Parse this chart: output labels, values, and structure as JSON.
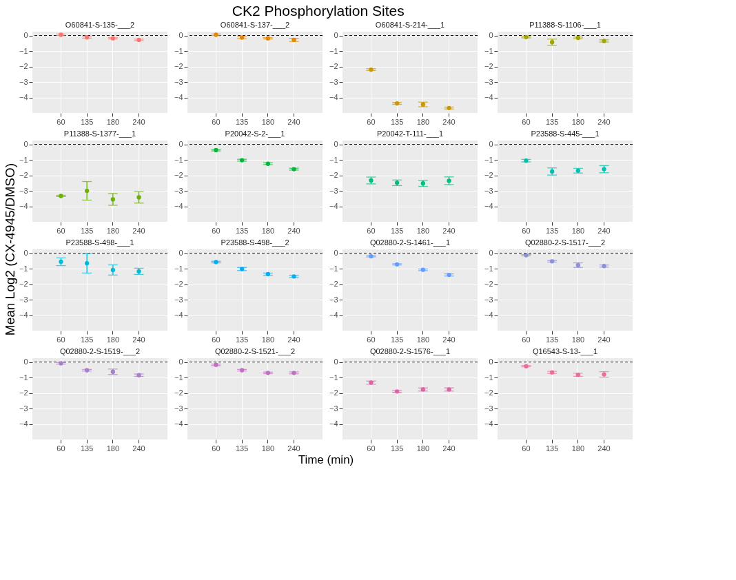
{
  "chart_data": [
    {
      "type": "scatter",
      "title": "O60841-S-135-___2",
      "annotations": [
        "CK2 Phosphorylation Sites"
      ],
      "ylabel": "Mean Log2 (CX-4945/DMSO)",
      "categories": [
        "60",
        "135",
        "180",
        "240"
      ],
      "ylim": [
        -5,
        0.25
      ],
      "yticks": [
        -4,
        -3,
        -2,
        -1,
        0
      ],
      "grid": true,
      "marker": "circle",
      "ref_lines": [
        {
          "axis": "y",
          "value": 0,
          "line_style": "dashed",
          "color": "#000000"
        }
      ],
      "series": [
        {
          "color": "#F8766D",
          "values": [
            0.05,
            -0.12,
            -0.18,
            -0.28
          ],
          "errors": [
            0.05,
            0.05,
            0.04,
            0.05
          ]
        }
      ]
    },
    {
      "type": "scatter",
      "title": "O60841-S-137-___2",
      "categories": [
        "60",
        "135",
        "180",
        "240"
      ],
      "ylim": [
        -5,
        0.25
      ],
      "yticks": [
        -4,
        -3,
        -2,
        -1,
        0
      ],
      "grid": true,
      "marker": "circle",
      "ref_lines": [
        {
          "axis": "y",
          "value": 0,
          "line_style": "dashed",
          "color": "#000000"
        }
      ],
      "series": [
        {
          "color": "#E58700",
          "values": [
            0.05,
            -0.13,
            -0.18,
            -0.28
          ],
          "errors": [
            0.05,
            0.07,
            0.04,
            0.1
          ]
        }
      ]
    },
    {
      "type": "scatter",
      "title": "O60841-S-214-___1",
      "categories": [
        "60",
        "135",
        "180",
        "240"
      ],
      "ylim": [
        -5,
        0.25
      ],
      "yticks": [
        -4,
        -3,
        -2,
        -1,
        0
      ],
      "grid": true,
      "marker": "circle",
      "ref_lines": [
        {
          "axis": "y",
          "value": 0,
          "line_style": "dashed",
          "color": "#000000"
        }
      ],
      "series": [
        {
          "color": "#C99800",
          "values": [
            -2.2,
            -4.38,
            -4.45,
            -4.68
          ],
          "errors": [
            0.06,
            0.06,
            0.15,
            0.06
          ]
        }
      ]
    },
    {
      "type": "scatter",
      "title": "P11388-S-1106-___1",
      "categories": [
        "60",
        "135",
        "180",
        "240"
      ],
      "ylim": [
        -5,
        0.25
      ],
      "yticks": [
        -4,
        -3,
        -2,
        -1,
        0
      ],
      "grid": true,
      "marker": "circle",
      "ref_lines": [
        {
          "axis": "y",
          "value": 0,
          "line_style": "dashed",
          "color": "#000000"
        }
      ],
      "series": [
        {
          "color": "#A3A500",
          "values": [
            -0.1,
            -0.43,
            -0.15,
            -0.35
          ],
          "errors": [
            0.05,
            0.2,
            0.05,
            0.07
          ]
        }
      ]
    },
    {
      "type": "scatter",
      "title": "P11388-S-1377-___1",
      "categories": [
        "60",
        "135",
        "180",
        "240"
      ],
      "ylim": [
        -5,
        0.25
      ],
      "yticks": [
        -4,
        -3,
        -2,
        -1,
        0
      ],
      "grid": true,
      "marker": "circle",
      "ref_lines": [
        {
          "axis": "y",
          "value": 0,
          "line_style": "dashed",
          "color": "#000000"
        }
      ],
      "series": [
        {
          "color": "#6BB100",
          "values": [
            -3.33,
            -3.0,
            -3.55,
            -3.42
          ],
          "errors": [
            0.04,
            0.6,
            0.38,
            0.37
          ]
        }
      ]
    },
    {
      "type": "scatter",
      "title": "P20042-S-2-___1",
      "categories": [
        "60",
        "135",
        "180",
        "240"
      ],
      "ylim": [
        -5,
        0.25
      ],
      "yticks": [
        -4,
        -3,
        -2,
        -1,
        0
      ],
      "grid": true,
      "marker": "circle",
      "ref_lines": [
        {
          "axis": "y",
          "value": 0,
          "line_style": "dashed",
          "color": "#000000"
        }
      ],
      "series": [
        {
          "color": "#00BA38",
          "values": [
            -0.37,
            -1.02,
            -1.25,
            -1.6
          ],
          "errors": [
            0.05,
            0.06,
            0.06,
            0.06
          ]
        }
      ]
    },
    {
      "type": "scatter",
      "title": "P20042-T-111-___1",
      "categories": [
        "60",
        "135",
        "180",
        "240"
      ],
      "ylim": [
        -5,
        0.25
      ],
      "yticks": [
        -4,
        -3,
        -2,
        -1,
        0
      ],
      "grid": true,
      "marker": "circle",
      "ref_lines": [
        {
          "axis": "y",
          "value": 0,
          "line_style": "dashed",
          "color": "#000000"
        }
      ],
      "series": [
        {
          "color": "#00BF7D",
          "values": [
            -2.33,
            -2.48,
            -2.52,
            -2.35
          ],
          "errors": [
            0.22,
            0.18,
            0.19,
            0.25
          ]
        }
      ]
    },
    {
      "type": "scatter",
      "title": "P23588-S-445-___1",
      "categories": [
        "60",
        "135",
        "180",
        "240"
      ],
      "ylim": [
        -5,
        0.25
      ],
      "yticks": [
        -4,
        -3,
        -2,
        -1,
        0
      ],
      "grid": true,
      "marker": "circle",
      "ref_lines": [
        {
          "axis": "y",
          "value": 0,
          "line_style": "dashed",
          "color": "#000000"
        }
      ],
      "series": [
        {
          "color": "#00C0AF",
          "values": [
            -1.05,
            -1.75,
            -1.7,
            -1.6
          ],
          "errors": [
            0.08,
            0.23,
            0.15,
            0.23
          ]
        }
      ]
    },
    {
      "type": "scatter",
      "title": "P23588-S-498-___1",
      "categories": [
        "60",
        "135",
        "180",
        "240"
      ],
      "ylim": [
        -5,
        0.25
      ],
      "yticks": [
        -4,
        -3,
        -2,
        -1,
        0
      ],
      "grid": true,
      "marker": "circle",
      "ref_lines": [
        {
          "axis": "y",
          "value": 0,
          "line_style": "dashed",
          "color": "#000000"
        }
      ],
      "series": [
        {
          "color": "#00BCD8",
          "values": [
            -0.55,
            -0.65,
            -1.08,
            -1.17
          ],
          "errors": [
            0.25,
            0.63,
            0.33,
            0.2
          ]
        }
      ]
    },
    {
      "type": "scatter",
      "title": "P23588-S-498-___2",
      "categories": [
        "60",
        "135",
        "180",
        "240"
      ],
      "ylim": [
        -5,
        0.25
      ],
      "yticks": [
        -4,
        -3,
        -2,
        -1,
        0
      ],
      "grid": true,
      "marker": "circle",
      "ref_lines": [
        {
          "axis": "y",
          "value": 0,
          "line_style": "dashed",
          "color": "#000000"
        }
      ],
      "series": [
        {
          "color": "#00B0F6",
          "values": [
            -0.57,
            -1.02,
            -1.35,
            -1.5
          ],
          "errors": [
            0.05,
            0.1,
            0.07,
            0.07
          ]
        }
      ]
    },
    {
      "type": "scatter",
      "title": "Q02880-2-S-1461-___1",
      "categories": [
        "60",
        "135",
        "180",
        "240"
      ],
      "ylim": [
        -5,
        0.25
      ],
      "yticks": [
        -4,
        -3,
        -2,
        -1,
        0
      ],
      "grid": true,
      "marker": "circle",
      "ref_lines": [
        {
          "axis": "y",
          "value": 0,
          "line_style": "dashed",
          "color": "#000000"
        }
      ],
      "series": [
        {
          "color": "#619CFF",
          "values": [
            -0.2,
            -0.72,
            -1.07,
            -1.4
          ],
          "errors": [
            0.04,
            0.04,
            0.05,
            0.07
          ]
        }
      ]
    },
    {
      "type": "scatter",
      "title": "Q02880-2-S-1517-___2",
      "categories": [
        "60",
        "135",
        "180",
        "240"
      ],
      "ylim": [
        -5,
        0.25
      ],
      "yticks": [
        -4,
        -3,
        -2,
        -1,
        0
      ],
      "grid": true,
      "marker": "circle",
      "ref_lines": [
        {
          "axis": "y",
          "value": 0,
          "line_style": "dashed",
          "color": "#000000"
        }
      ],
      "series": [
        {
          "color": "#8F8FD8",
          "values": [
            -0.13,
            -0.52,
            -0.77,
            -0.83
          ],
          "errors": [
            0.04,
            0.05,
            0.15,
            0.07
          ]
        }
      ]
    },
    {
      "type": "scatter",
      "title": "Q02880-2-S-1519-___2",
      "categories": [
        "60",
        "135",
        "180",
        "240"
      ],
      "ylim": [
        -5,
        0.25
      ],
      "yticks": [
        -4,
        -3,
        -2,
        -1,
        0
      ],
      "grid": true,
      "marker": "circle",
      "ref_lines": [
        {
          "axis": "y",
          "value": 0,
          "line_style": "dashed",
          "color": "#000000"
        }
      ],
      "series": [
        {
          "color": "#A77EC8",
          "values": [
            -0.08,
            -0.53,
            -0.63,
            -0.85
          ],
          "errors": [
            0.05,
            0.05,
            0.18,
            0.08
          ]
        }
      ]
    },
    {
      "type": "scatter",
      "title": "Q02880-2-S-1521-___2",
      "xlabel": "Time (min)",
      "categories": [
        "60",
        "135",
        "180",
        "240"
      ],
      "ylim": [
        -5,
        0.25
      ],
      "yticks": [
        -4,
        -3,
        -2,
        -1,
        0
      ],
      "grid": true,
      "marker": "circle",
      "ref_lines": [
        {
          "axis": "y",
          "value": 0,
          "line_style": "dashed",
          "color": "#000000"
        }
      ],
      "series": [
        {
          "color": "#C070C0",
          "values": [
            -0.18,
            -0.53,
            -0.7,
            -0.7
          ],
          "errors": [
            0.05,
            0.05,
            0.05,
            0.06
          ]
        }
      ]
    },
    {
      "type": "scatter",
      "title": "Q02880-2-S-1576-___1",
      "categories": [
        "60",
        "135",
        "180",
        "240"
      ],
      "ylim": [
        -5,
        0.25
      ],
      "yticks": [
        -4,
        -3,
        -2,
        -1,
        0
      ],
      "grid": true,
      "marker": "circle",
      "ref_lines": [
        {
          "axis": "y",
          "value": 0,
          "line_style": "dashed",
          "color": "#000000"
        }
      ],
      "series": [
        {
          "color": "#E262A8",
          "values": [
            -1.33,
            -1.9,
            -1.77,
            -1.77
          ],
          "errors": [
            0.1,
            0.06,
            0.1,
            0.1
          ]
        }
      ]
    },
    {
      "type": "scatter",
      "title": "Q16543-S-13-___1",
      "categories": [
        "60",
        "135",
        "180",
        "240"
      ],
      "ylim": [
        -5,
        0.25
      ],
      "yticks": [
        -4,
        -3,
        -2,
        -1,
        0
      ],
      "grid": true,
      "marker": "circle",
      "ref_lines": [
        {
          "axis": "y",
          "value": 0,
          "line_style": "dashed",
          "color": "#000000"
        }
      ],
      "series": [
        {
          "color": "#EA6C9E",
          "values": [
            -0.27,
            -0.67,
            -0.82,
            -0.8
          ],
          "errors": [
            0.04,
            0.07,
            0.1,
            0.18
          ]
        }
      ]
    }
  ]
}
